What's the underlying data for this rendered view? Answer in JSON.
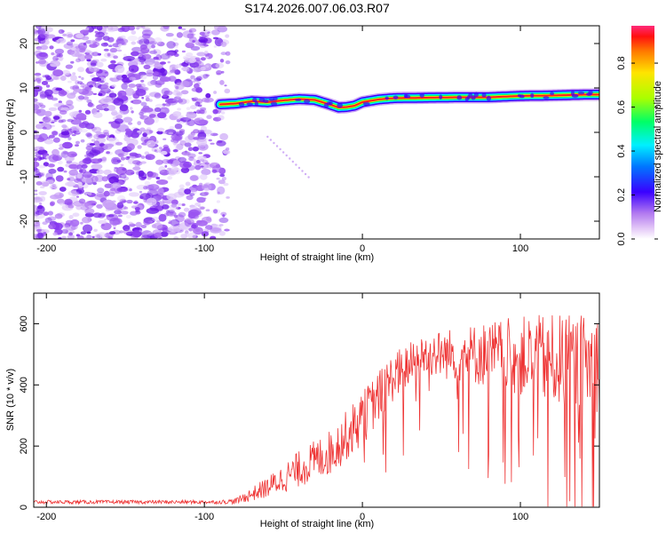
{
  "title": "S174.2026.007.06.03.R07",
  "colors": {
    "snr_line": "#ee3333",
    "noise_speckle": "#8a3cf0",
    "frame": "#000000"
  },
  "chart_data": [
    {
      "type": "heatmap",
      "name": "spectrogram",
      "xlabel": "Height of straight line (km)",
      "ylabel": "Frequency (Hz)",
      "xlim": [
        -208,
        150
      ],
      "ylim": [
        -24,
        24
      ],
      "xticks": [
        -200,
        -100,
        0,
        100
      ],
      "yticks": [
        -20,
        -10,
        0,
        10,
        20
      ],
      "colorbar": {
        "label": "Normalized spectral amplitude",
        "range": [
          0,
          0.97
        ],
        "ticks": [
          0.0,
          0.2,
          0.4,
          0.6,
          0.8
        ],
        "tick_labels": [
          "0.0",
          "0.2",
          "0.4",
          "0.6",
          "0.8"
        ]
      },
      "noise_region_x": [
        -208,
        -85
      ],
      "noise_region_amplitude": 0.2,
      "ridge": {
        "x": [
          -90,
          -80,
          -70,
          -60,
          -50,
          -40,
          -30,
          -20,
          -15,
          -10,
          -5,
          0,
          10,
          20,
          40,
          60,
          80,
          100,
          120,
          140,
          150
        ],
        "freq_hz": [
          6.3,
          6.5,
          7.0,
          6.8,
          7.2,
          7.5,
          7.3,
          6.2,
          5.6,
          5.7,
          6.0,
          6.8,
          7.4,
          7.7,
          7.8,
          7.9,
          7.9,
          8.2,
          8.3,
          8.5,
          8.5
        ]
      }
    },
    {
      "type": "line",
      "name": "snr",
      "xlabel": "Height of straight line (km)",
      "ylabel": "SNR (10 * v/v)",
      "xlim": [
        -208,
        150
      ],
      "ylim": [
        0,
        700
      ],
      "xticks": [
        -200,
        -100,
        0,
        100
      ],
      "yticks": [
        0,
        200,
        400,
        600
      ],
      "envelope": {
        "x": [
          -208,
          -90,
          -80,
          -60,
          -40,
          -20,
          0,
          20,
          40,
          60,
          80,
          100,
          120,
          150
        ],
        "mean": [
          17,
          17,
          20,
          65,
          125,
          180,
          290,
          430,
          500,
          500,
          500,
          495,
          480,
          470
        ],
        "spread": [
          6,
          6,
          10,
          35,
          60,
          75,
          90,
          80,
          70,
          90,
          110,
          130,
          150,
          160
        ]
      }
    }
  ]
}
